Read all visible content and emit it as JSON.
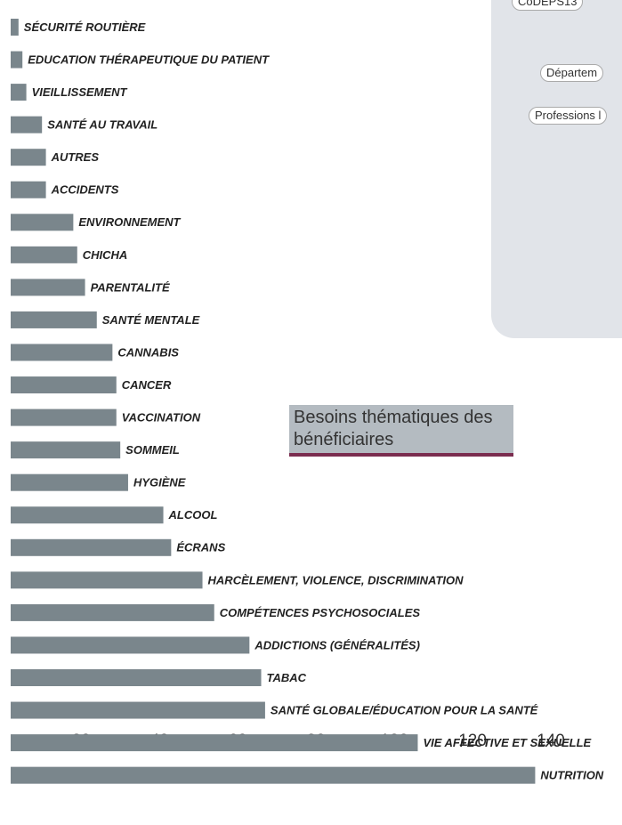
{
  "chart_data": {
    "type": "bar",
    "orientation": "horizontal",
    "title": "Besoins thématiques des bénéficiaires",
    "categories": [
      "SÉCURITÉ ROUTIÈRE",
      "EDUCATION THÉRAPEUTIQUE DU PATIENT",
      "VIEILLISSEMENT",
      "SANTÉ AU TRAVAIL",
      "AUTRES",
      "ACCIDENTS",
      "ENVIRONNEMENT",
      "CHICHA",
      "PARENTALITÉ",
      "SANTÉ MENTALE",
      "CANNABIS",
      "CANCER",
      "VACCINATION",
      "SOMMEIL",
      "HYGIÈNE",
      "ALCOOL",
      "ÉCRANS",
      "HARCÈLEMENT, VIOLENCE, DISCRIMINATION",
      "COMPÉTENCES PSYCHOSOCIALES",
      "ADDICTIONS (GÉNÉRALITÉS)",
      "TABAC",
      "SANTÉ GLOBALE/ÉDUCATION POUR LA SANTÉ",
      "VIE AFFECTIVE ET SEXUELLE",
      "NUTRITION"
    ],
    "values": [
      4,
      5,
      6,
      10,
      11,
      11,
      18,
      19,
      21,
      24,
      28,
      29,
      29,
      30,
      32,
      41,
      43,
      51,
      54,
      63,
      66,
      67,
      106,
      136
    ],
    "color": "#7a868c",
    "xlim": [
      2,
      155
    ],
    "xticks": [
      20,
      40,
      60,
      80,
      100,
      120,
      140
    ],
    "grid": false
  },
  "panel": {
    "items": [
      "CoDEPS13",
      "Départem",
      "Professions l"
    ]
  }
}
